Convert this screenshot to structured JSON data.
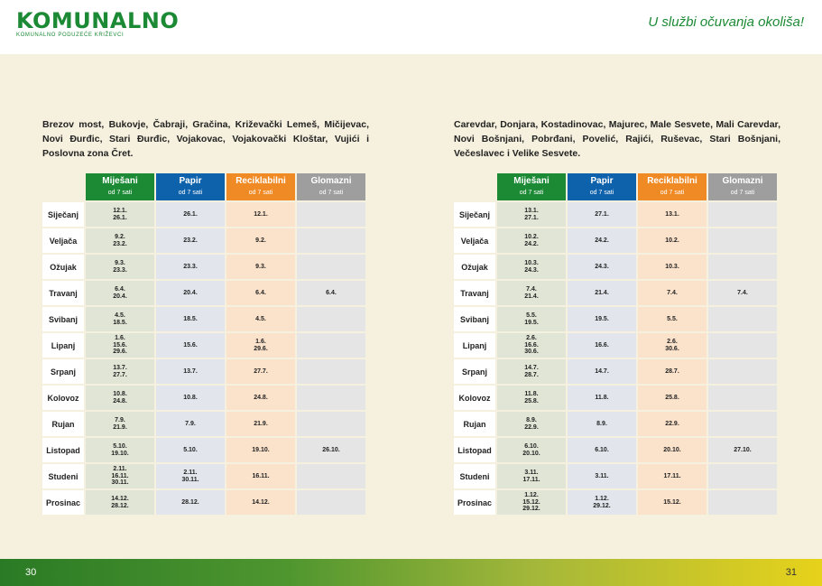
{
  "header": {
    "logo": "KOMUNALNO",
    "logo_subtitle": "KOMUNALNO PODUZEĆE KRIŽEVCI",
    "slogan": "U službi očuvanja okoliša!"
  },
  "footer": {
    "page_left": "30",
    "page_right": "31"
  },
  "columns": [
    {
      "title": "Miješani",
      "subtitle": "od 7 sati"
    },
    {
      "title": "Papir",
      "subtitle": "od 7 sati"
    },
    {
      "title": "Reciklabilni",
      "subtitle": "od 7 sati"
    },
    {
      "title": "Glomazni",
      "subtitle": "od 7 sati"
    }
  ],
  "panels": [
    {
      "locations": "Brezov most, Bukovje, Čabraji, Gračina, Križevački Lemeš, Mičijevac, Novi Đurđic, Stari Đurđic, Vojakovac, Vojakovački Kloštar, Vujići i Poslovna zona Čret.",
      "rows": [
        {
          "month": "Siječanj",
          "mix": [
            "12.1.",
            "26.1."
          ],
          "pap": [
            "26.1."
          ],
          "rec": [
            "12.1."
          ],
          "glo": []
        },
        {
          "month": "Veljača",
          "mix": [
            "9.2.",
            "23.2."
          ],
          "pap": [
            "23.2."
          ],
          "rec": [
            "9.2."
          ],
          "glo": []
        },
        {
          "month": "Ožujak",
          "mix": [
            "9.3.",
            "23.3."
          ],
          "pap": [
            "23.3."
          ],
          "rec": [
            "9.3."
          ],
          "glo": []
        },
        {
          "month": "Travanj",
          "mix": [
            "6.4.",
            "20.4."
          ],
          "pap": [
            "20.4."
          ],
          "rec": [
            "6.4."
          ],
          "glo": [
            "6.4."
          ]
        },
        {
          "month": "Svibanj",
          "mix": [
            "4.5.",
            "18.5."
          ],
          "pap": [
            "18.5."
          ],
          "rec": [
            "4.5."
          ],
          "glo": []
        },
        {
          "month": "Lipanj",
          "mix": [
            "1.6.",
            "15.6.",
            "29.6."
          ],
          "pap": [
            "15.6."
          ],
          "rec": [
            "1.6.",
            "29.6."
          ],
          "glo": []
        },
        {
          "month": "Srpanj",
          "mix": [
            "13.7.",
            "27.7."
          ],
          "pap": [
            "13.7."
          ],
          "rec": [
            "27.7."
          ],
          "glo": []
        },
        {
          "month": "Kolovoz",
          "mix": [
            "10.8.",
            "24.8."
          ],
          "pap": [
            "10.8."
          ],
          "rec": [
            "24.8."
          ],
          "glo": []
        },
        {
          "month": "Rujan",
          "mix": [
            "7.9.",
            "21.9."
          ],
          "pap": [
            "7.9."
          ],
          "rec": [
            "21.9."
          ],
          "glo": []
        },
        {
          "month": "Listopad",
          "mix": [
            "5.10.",
            "19.10."
          ],
          "pap": [
            "5.10."
          ],
          "rec": [
            "19.10."
          ],
          "glo": [
            "26.10."
          ]
        },
        {
          "month": "Studeni",
          "mix": [
            "2.11.",
            "16.11.",
            "30.11."
          ],
          "pap": [
            "2.11.",
            "30.11."
          ],
          "rec": [
            "16.11."
          ],
          "glo": []
        },
        {
          "month": "Prosinac",
          "mix": [
            "14.12.",
            "28.12."
          ],
          "pap": [
            "28.12."
          ],
          "rec": [
            "14.12."
          ],
          "glo": []
        }
      ]
    },
    {
      "locations": "Carevdar, Donjara, Kostadinovac, Majurec, Male Sesvete, Mali Carevdar, Novi Bošnjani, Pobrđani, Povelić, Rajići, Ruševac, Stari Bošnjani, Večeslavec i Velike Sesvete.",
      "rows": [
        {
          "month": "Siječanj",
          "mix": [
            "13.1.",
            "27.1."
          ],
          "pap": [
            "27.1."
          ],
          "rec": [
            "13.1."
          ],
          "glo": []
        },
        {
          "month": "Veljača",
          "mix": [
            "10.2.",
            "24.2."
          ],
          "pap": [
            "24.2."
          ],
          "rec": [
            "10.2."
          ],
          "glo": []
        },
        {
          "month": "Ožujak",
          "mix": [
            "10.3.",
            "24.3."
          ],
          "pap": [
            "24.3."
          ],
          "rec": [
            "10.3."
          ],
          "glo": []
        },
        {
          "month": "Travanj",
          "mix": [
            "7.4.",
            "21.4."
          ],
          "pap": [
            "21.4."
          ],
          "rec": [
            "7.4."
          ],
          "glo": [
            "7.4."
          ]
        },
        {
          "month": "Svibanj",
          "mix": [
            "5.5.",
            "19.5."
          ],
          "pap": [
            "19.5."
          ],
          "rec": [
            "5.5."
          ],
          "glo": []
        },
        {
          "month": "Lipanj",
          "mix": [
            "2.6.",
            "16.6.",
            "30.6."
          ],
          "pap": [
            "16.6."
          ],
          "rec": [
            "2.6.",
            "30.6."
          ],
          "glo": []
        },
        {
          "month": "Srpanj",
          "mix": [
            "14.7.",
            "28.7."
          ],
          "pap": [
            "14.7."
          ],
          "rec": [
            "28.7."
          ],
          "glo": []
        },
        {
          "month": "Kolovoz",
          "mix": [
            "11.8.",
            "25.8."
          ],
          "pap": [
            "11.8."
          ],
          "rec": [
            "25.8."
          ],
          "glo": []
        },
        {
          "month": "Rujan",
          "mix": [
            "8.9.",
            "22.9."
          ],
          "pap": [
            "8.9."
          ],
          "rec": [
            "22.9."
          ],
          "glo": []
        },
        {
          "month": "Listopad",
          "mix": [
            "6.10.",
            "20.10."
          ],
          "pap": [
            "6.10."
          ],
          "rec": [
            "20.10."
          ],
          "glo": [
            "27.10."
          ]
        },
        {
          "month": "Studeni",
          "mix": [
            "3.11.",
            "17.11."
          ],
          "pap": [
            "3.11."
          ],
          "rec": [
            "17.11."
          ],
          "glo": []
        },
        {
          "month": "Prosinac",
          "mix": [
            "1.12.",
            "15.12.",
            "29.12."
          ],
          "pap": [
            "1.12.",
            "29.12."
          ],
          "rec": [
            "15.12."
          ],
          "glo": []
        }
      ]
    }
  ]
}
